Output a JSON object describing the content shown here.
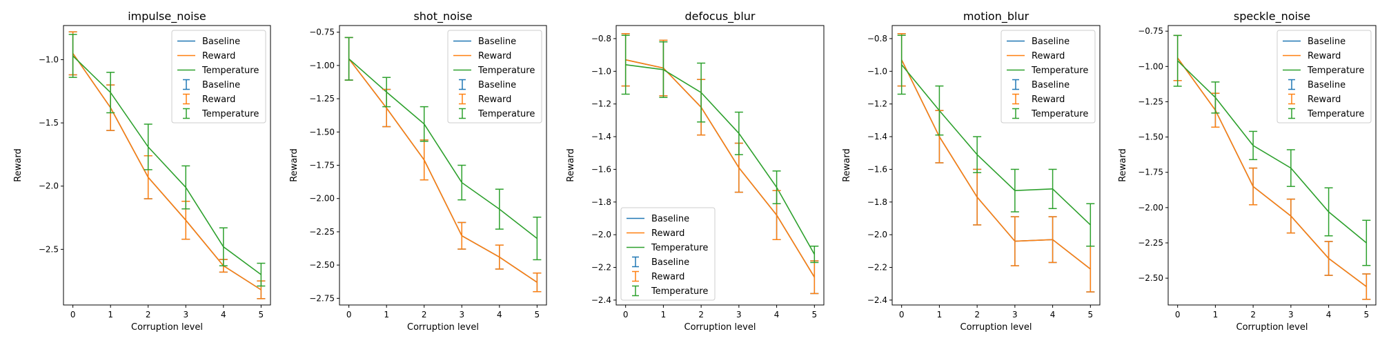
{
  "colors": {
    "Baseline": "#1f77b4",
    "Reward": "#ff7f0e",
    "Temperature": "#2ca02c"
  },
  "chart_data": [
    {
      "type": "line",
      "title": "impulse_noise",
      "xlabel": "Corruption level",
      "ylabel": "Reward",
      "x": [
        0,
        1,
        2,
        3,
        4,
        5
      ],
      "xlim": [
        -0.25,
        5.25
      ],
      "ylim": [
        -2.94,
        -0.73
      ],
      "yticks": [
        -2.5,
        -2.0,
        -1.5,
        -1.0
      ],
      "yticklabels": [
        "−2.5",
        "−2.0",
        "−1.5",
        "−1.0"
      ],
      "legend_position": "upper-right",
      "legend_labels": [
        "Baseline",
        "Reward",
        "Temperature",
        "Baseline",
        "Reward",
        "Temperature"
      ],
      "series": [
        {
          "name": "Baseline",
          "values": [
            -0.95,
            -1.38,
            -1.93,
            -2.27,
            -2.63,
            -2.82
          ],
          "errors": [
            0.17,
            0.18,
            0.17,
            0.15,
            0.05,
            0.07
          ]
        },
        {
          "name": "Reward",
          "values": [
            -0.95,
            -1.38,
            -1.93,
            -2.27,
            -2.63,
            -2.82
          ],
          "errors": [
            0.17,
            0.18,
            0.17,
            0.15,
            0.05,
            0.07
          ]
        },
        {
          "name": "Temperature",
          "values": [
            -0.97,
            -1.26,
            -1.69,
            -2.01,
            -2.48,
            -2.7
          ],
          "errors": [
            0.17,
            0.16,
            0.18,
            0.17,
            0.15,
            0.09
          ]
        }
      ]
    },
    {
      "type": "line",
      "title": "shot_noise",
      "xlabel": "Corruption level",
      "ylabel": "Reward",
      "x": [
        0,
        1,
        2,
        3,
        4,
        5
      ],
      "xlim": [
        -0.25,
        5.25
      ],
      "ylim": [
        -2.8,
        -0.7
      ],
      "yticks": [
        -2.75,
        -2.5,
        -2.25,
        -2.0,
        -1.75,
        -1.5,
        -1.25,
        -1.0,
        -0.75
      ],
      "yticklabels": [
        "−2.75",
        "−2.50",
        "−2.25",
        "−2.00",
        "−1.75",
        "−1.50",
        "−1.25",
        "−1.00",
        "−0.75"
      ],
      "legend_position": "upper-right",
      "legend_labels": [
        "Baseline",
        "Reward",
        "Temperature",
        "Baseline",
        "Reward",
        "Temperature"
      ],
      "series": [
        {
          "name": "Baseline",
          "values": [
            -0.95,
            -1.32,
            -1.71,
            -2.28,
            -2.44,
            -2.63
          ],
          "errors": [
            0.16,
            0.14,
            0.15,
            0.1,
            0.09,
            0.07
          ]
        },
        {
          "name": "Reward",
          "values": [
            -0.95,
            -1.32,
            -1.71,
            -2.28,
            -2.44,
            -2.63
          ],
          "errors": [
            0.16,
            0.14,
            0.15,
            0.1,
            0.09,
            0.07
          ]
        },
        {
          "name": "Temperature",
          "values": [
            -0.95,
            -1.2,
            -1.44,
            -1.88,
            -2.08,
            -2.3
          ],
          "errors": [
            0.16,
            0.11,
            0.13,
            0.13,
            0.15,
            0.16
          ]
        }
      ]
    },
    {
      "type": "line",
      "title": "defocus_blur",
      "xlabel": "Corruption level",
      "ylabel": "Reward",
      "x": [
        0,
        1,
        2,
        3,
        4,
        5
      ],
      "xlim": [
        -0.25,
        5.25
      ],
      "ylim": [
        -2.43,
        -0.72
      ],
      "yticks": [
        -2.4,
        -2.2,
        -2.0,
        -1.8,
        -1.6,
        -1.4,
        -1.2,
        -1.0,
        -0.8
      ],
      "yticklabels": [
        "−2.4",
        "−2.2",
        "−2.0",
        "−1.8",
        "−1.6",
        "−1.4",
        "−1.2",
        "−1.0",
        "−0.8"
      ],
      "legend_position": "lower-left",
      "legend_labels": [
        "Baseline",
        "Reward",
        "Temperature",
        "Baseline",
        "Reward",
        "Temperature"
      ],
      "series": [
        {
          "name": "Baseline",
          "values": [
            -0.93,
            -0.98,
            -1.22,
            -1.59,
            -1.88,
            -2.26
          ],
          "errors": [
            0.16,
            0.17,
            0.17,
            0.15,
            0.15,
            0.1
          ]
        },
        {
          "name": "Reward",
          "values": [
            -0.93,
            -0.98,
            -1.22,
            -1.59,
            -1.88,
            -2.26
          ],
          "errors": [
            0.16,
            0.17,
            0.17,
            0.15,
            0.15,
            0.1
          ]
        },
        {
          "name": "Temperature",
          "values": [
            -0.96,
            -0.99,
            -1.13,
            -1.38,
            -1.71,
            -2.12
          ],
          "errors": [
            0.18,
            0.17,
            0.18,
            0.13,
            0.1,
            0.05
          ]
        }
      ]
    },
    {
      "type": "line",
      "title": "motion_blur",
      "xlabel": "Corruption level",
      "ylabel": "Reward",
      "x": [
        0,
        1,
        2,
        3,
        4,
        5
      ],
      "xlim": [
        -0.25,
        5.25
      ],
      "ylim": [
        -2.43,
        -0.72
      ],
      "yticks": [
        -2.4,
        -2.2,
        -2.0,
        -1.8,
        -1.6,
        -1.4,
        -1.2,
        -1.0,
        -0.8
      ],
      "yticklabels": [
        "−2.4",
        "−2.2",
        "−2.0",
        "−1.8",
        "−1.6",
        "−1.4",
        "−1.2",
        "−1.0",
        "−0.8"
      ],
      "legend_position": "upper-right",
      "legend_labels": [
        "Baseline",
        "Reward",
        "Temperature",
        "Baseline",
        "Reward",
        "Temperature"
      ],
      "series": [
        {
          "name": "Baseline",
          "values": [
            -0.93,
            -1.4,
            -1.77,
            -2.04,
            -2.03,
            -2.21
          ],
          "errors": [
            0.16,
            0.16,
            0.17,
            0.15,
            0.14,
            0.14
          ]
        },
        {
          "name": "Reward",
          "values": [
            -0.93,
            -1.4,
            -1.77,
            -2.04,
            -2.03,
            -2.21
          ],
          "errors": [
            0.16,
            0.16,
            0.17,
            0.15,
            0.14,
            0.14
          ]
        },
        {
          "name": "Temperature",
          "values": [
            -0.96,
            -1.24,
            -1.51,
            -1.73,
            -1.72,
            -1.94
          ],
          "errors": [
            0.18,
            0.15,
            0.11,
            0.13,
            0.12,
            0.13
          ]
        }
      ]
    },
    {
      "type": "line",
      "title": "speckle_noise",
      "xlabel": "Corruption level",
      "ylabel": "Reward",
      "x": [
        0,
        1,
        2,
        3,
        4,
        5
      ],
      "xlim": [
        -0.25,
        5.25
      ],
      "ylim": [
        -2.69,
        -0.71
      ],
      "yticks": [
        -2.5,
        -2.25,
        -2.0,
        -1.75,
        -1.5,
        -1.25,
        -1.0,
        -0.75
      ],
      "yticklabels": [
        "−2.50",
        "−2.25",
        "−2.00",
        "−1.75",
        "−1.50",
        "−1.25",
        "−1.00",
        "−0.75"
      ],
      "legend_position": "upper-right",
      "legend_labels": [
        "Baseline",
        "Reward",
        "Temperature",
        "Baseline",
        "Reward",
        "Temperature"
      ],
      "series": [
        {
          "name": "Baseline",
          "values": [
            -0.94,
            -1.31,
            -1.85,
            -2.06,
            -2.36,
            -2.56
          ],
          "errors": [
            0.16,
            0.12,
            0.13,
            0.12,
            0.12,
            0.09
          ]
        },
        {
          "name": "Reward",
          "values": [
            -0.94,
            -1.31,
            -1.85,
            -2.06,
            -2.36,
            -2.56
          ],
          "errors": [
            0.16,
            0.12,
            0.13,
            0.12,
            0.12,
            0.09
          ]
        },
        {
          "name": "Temperature",
          "values": [
            -0.96,
            -1.22,
            -1.56,
            -1.72,
            -2.03,
            -2.25
          ],
          "errors": [
            0.18,
            0.11,
            0.1,
            0.13,
            0.17,
            0.16
          ]
        }
      ]
    }
  ]
}
